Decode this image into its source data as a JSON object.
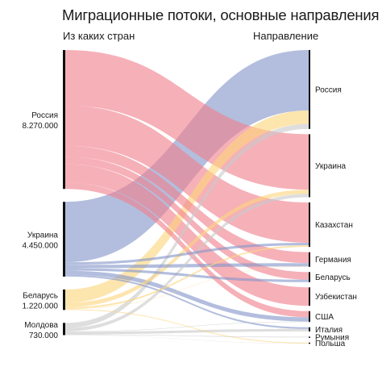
{
  "title": "Миграционные потоки, основные направления",
  "headers": {
    "left": "Из каких стран",
    "right": "Направление"
  },
  "colors": {
    "Россия": "#f07f8c",
    "Украина": "#8496c9",
    "Беларусь": "#fbd57c",
    "Молдова": "#c9c9c9",
    "bar": "#111111"
  },
  "chart_data": {
    "type": "sankey",
    "title": "Миграционные потоки, основные направления",
    "sources": [
      {
        "name": "Россия",
        "value": 8270000,
        "value_label": "8.270.000"
      },
      {
        "name": "Украина",
        "value": 4450000,
        "value_label": "4.450.000"
      },
      {
        "name": "Беларусь",
        "value": 1220000,
        "value_label": "1.220.000"
      },
      {
        "name": "Молдова",
        "value": 730000,
        "value_label": "730.000"
      }
    ],
    "targets": [
      "Россия",
      "Украина",
      "Казахстан",
      "Германия",
      "Беларусь",
      "Узбекистан",
      "США",
      "Италия",
      "Румыния",
      "Польша"
    ],
    "flows": [
      {
        "from": "Россия",
        "to": "Украина",
        "value": 3300000
      },
      {
        "from": "Россия",
        "to": "Казахстан",
        "value": 2400000
      },
      {
        "from": "Россия",
        "to": "Германия",
        "value": 650000
      },
      {
        "from": "Россия",
        "to": "Беларусь",
        "value": 450000
      },
      {
        "from": "Россия",
        "to": "Узбекистан",
        "value": 1100000
      },
      {
        "from": "Россия",
        "to": "США",
        "value": 370000
      },
      {
        "from": "Украина",
        "to": "Россия",
        "value": 3600000
      },
      {
        "from": "Украина",
        "to": "Казахстан",
        "value": 150000
      },
      {
        "from": "Украина",
        "to": "Германия",
        "value": 200000
      },
      {
        "from": "Украина",
        "to": "Беларусь",
        "value": 150000
      },
      {
        "from": "Украина",
        "to": "США",
        "value": 250000
      },
      {
        "from": "Украина",
        "to": "Италия",
        "value": 100000
      },
      {
        "from": "Беларусь",
        "to": "Россия",
        "value": 800000
      },
      {
        "from": "Беларусь",
        "to": "Украина",
        "value": 250000
      },
      {
        "from": "Беларусь",
        "to": "Казахстан",
        "value": 100000
      },
      {
        "from": "Беларусь",
        "to": "Германия",
        "value": 20000
      },
      {
        "from": "Беларусь",
        "to": "Польша",
        "value": 50000
      },
      {
        "from": "Молдова",
        "to": "Россия",
        "value": 300000
      },
      {
        "from": "Молдова",
        "to": "Украина",
        "value": 200000
      },
      {
        "from": "Молдова",
        "to": "США",
        "value": 30000
      },
      {
        "from": "Молдова",
        "to": "Италия",
        "value": 150000
      },
      {
        "from": "Молдова",
        "to": "Румыния",
        "value": 40000
      },
      {
        "from": "Молдова",
        "to": "Польша",
        "value": 10000
      }
    ]
  }
}
